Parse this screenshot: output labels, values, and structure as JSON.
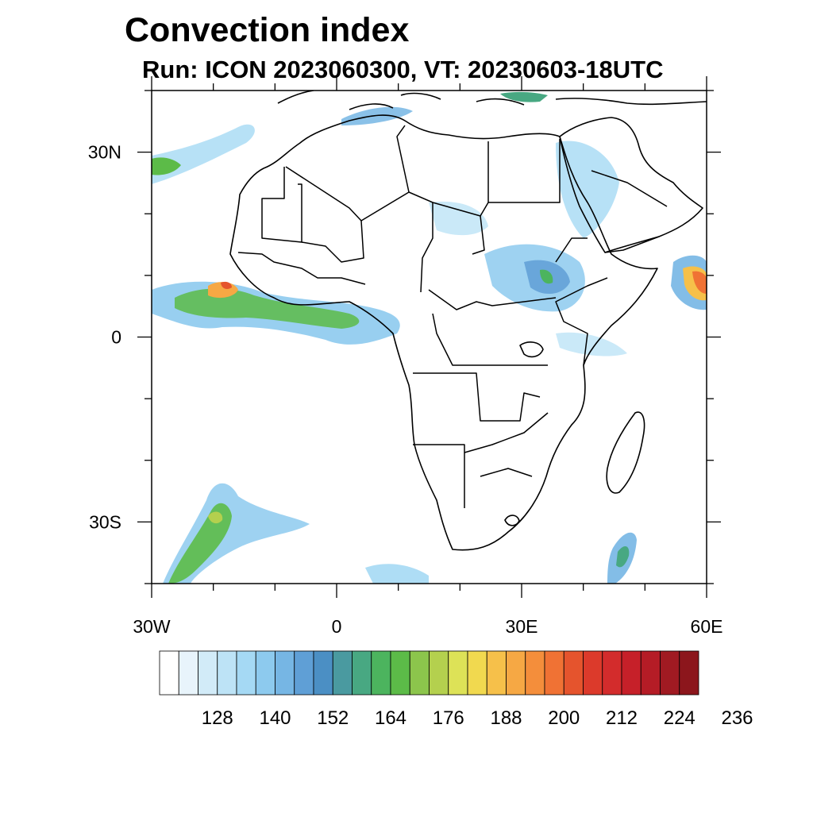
{
  "title": "Convection index",
  "subtitle": "Run: ICON 2023060300,  VT: 20230603-18UTC",
  "map": {
    "projection": "equirectangular",
    "lon_range": [
      -30,
      60
    ],
    "lat_range": [
      -40,
      40
    ],
    "x_ticks": [
      {
        "lon": -30,
        "label": "30W"
      },
      {
        "lon": 0,
        "label": "0"
      },
      {
        "lon": 30,
        "label": "30E"
      },
      {
        "lon": 60,
        "label": "60E"
      }
    ],
    "y_ticks": [
      {
        "lat": 30,
        "label": "30N"
      },
      {
        "lat": 0,
        "label": "0"
      },
      {
        "lat": -30,
        "label": "30S"
      }
    ],
    "field": "convection index",
    "features": [
      "coastlines",
      "country-borders"
    ]
  },
  "colorbar": {
    "colors": [
      "#ffffff",
      "#e8f4fb",
      "#d2ebf8",
      "#bde3f6",
      "#a5d9f4",
      "#8dcaee",
      "#76b6e4",
      "#5f9fd6",
      "#4b8fc4",
      "#4a9aa0",
      "#48a882",
      "#4cb45e",
      "#5cbb48",
      "#8cc54c",
      "#b4d04e",
      "#dde257",
      "#f1d94f",
      "#f6c04a",
      "#f6a844",
      "#f48e3b",
      "#f07234",
      "#e5542d",
      "#dc3a2b",
      "#d32c2c",
      "#c62029",
      "#b51c26",
      "#a01a22",
      "#8c161c"
    ],
    "labels": [
      "128",
      "140",
      "152",
      "164",
      "176",
      "188",
      "200",
      "212",
      "224",
      "236"
    ]
  }
}
